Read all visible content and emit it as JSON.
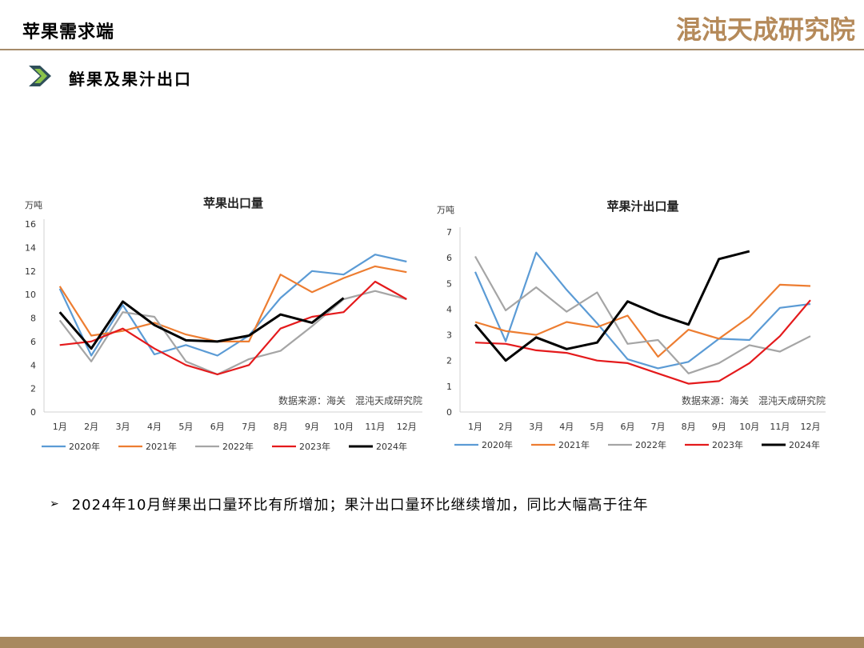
{
  "header": {
    "title": "苹果需求端",
    "logo": "混沌天成研究院"
  },
  "section": {
    "title": "鲜果及果汁出口"
  },
  "bullet": {
    "text": "2024年10月鲜果出口量环比有所增加；果汁出口量环比继续增加，同比大幅高于往年"
  },
  "colors": {
    "accent": "#a8895f",
    "arrow_dark": "#2f4f5a",
    "arrow_light": "#8bc34a"
  },
  "chart_data": [
    {
      "type": "line",
      "title": "苹果出口量",
      "ylabel": "万吨",
      "source": "数据来源：海关　混沌天成研究院",
      "categories": [
        "1月",
        "2月",
        "3月",
        "4月",
        "5月",
        "6月",
        "7月",
        "8月",
        "9月",
        "10月",
        "11月",
        "12月"
      ],
      "ylim": [
        0,
        16
      ],
      "yticks": [
        0,
        2,
        4,
        6,
        8,
        10,
        12,
        14,
        16
      ],
      "legend_position": "bottom",
      "series": [
        {
          "name": "2020年",
          "color": "#5b9bd5",
          "values": [
            10.5,
            4.8,
            9.1,
            4.9,
            5.7,
            4.8,
            6.5,
            9.7,
            12.0,
            11.7,
            13.4,
            12.8
          ]
        },
        {
          "name": "2021年",
          "color": "#ed7d31",
          "values": [
            10.7,
            6.5,
            6.9,
            7.6,
            6.6,
            6.0,
            6.0,
            11.7,
            10.2,
            11.4,
            12.4,
            11.9
          ]
        },
        {
          "name": "2022年",
          "color": "#a5a5a5",
          "values": [
            7.8,
            4.3,
            8.5,
            8.1,
            4.3,
            3.2,
            4.5,
            5.2,
            7.3,
            9.6,
            10.3,
            9.6
          ]
        },
        {
          "name": "2023年",
          "color": "#e41a1c",
          "values": [
            5.7,
            6.0,
            7.1,
            5.4,
            4.0,
            3.2,
            4.0,
            7.1,
            8.1,
            8.5,
            11.1,
            9.6
          ]
        },
        {
          "name": "2024年",
          "color": "#000000",
          "values": [
            8.5,
            5.4,
            9.4,
            7.4,
            6.1,
            6.0,
            6.5,
            8.3,
            7.6,
            9.7,
            null,
            null
          ]
        }
      ]
    },
    {
      "type": "line",
      "title": "苹果汁出口量",
      "ylabel": "万吨",
      "source": "数据来源：海关　混沌天成研究院",
      "categories": [
        "1月",
        "2月",
        "3月",
        "4月",
        "5月",
        "6月",
        "7月",
        "8月",
        "9月",
        "10月",
        "11月",
        "12月"
      ],
      "ylim": [
        0,
        7
      ],
      "yticks": [
        0,
        1,
        2,
        3,
        4,
        5,
        6,
        7
      ],
      "legend_position": "bottom",
      "series": [
        {
          "name": "2020年",
          "color": "#5b9bd5",
          "values": [
            5.45,
            2.75,
            6.2,
            4.75,
            3.45,
            2.05,
            1.7,
            1.95,
            2.85,
            2.8,
            4.05,
            4.2
          ]
        },
        {
          "name": "2021年",
          "color": "#ed7d31",
          "values": [
            3.5,
            3.15,
            3.0,
            3.5,
            3.3,
            3.75,
            2.15,
            3.2,
            2.85,
            3.7,
            4.95,
            4.9
          ]
        },
        {
          "name": "2022年",
          "color": "#a5a5a5",
          "values": [
            6.05,
            3.95,
            4.85,
            3.9,
            4.65,
            2.65,
            2.8,
            1.5,
            1.9,
            2.6,
            2.35,
            2.95
          ]
        },
        {
          "name": "2023年",
          "color": "#e41a1c",
          "values": [
            2.7,
            2.65,
            2.4,
            2.3,
            2.0,
            1.9,
            1.5,
            1.1,
            1.2,
            1.9,
            2.95,
            4.35
          ]
        },
        {
          "name": "2024年",
          "color": "#000000",
          "values": [
            3.4,
            2.0,
            2.9,
            2.45,
            2.7,
            4.3,
            3.8,
            3.4,
            5.95,
            6.25,
            null,
            null
          ]
        }
      ]
    }
  ]
}
